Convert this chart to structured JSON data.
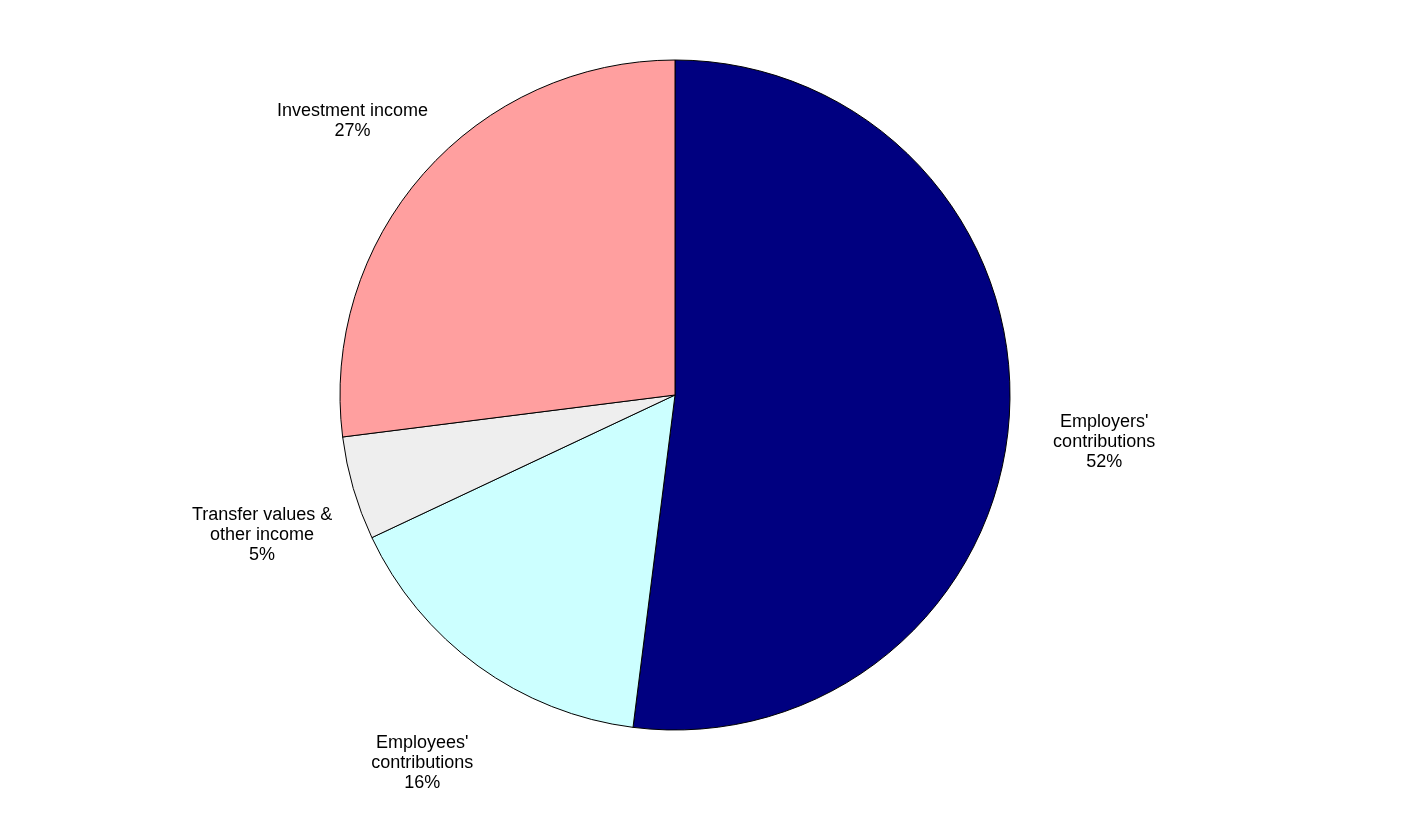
{
  "chart_data": {
    "type": "pie",
    "categories": [
      "Employers' contributions",
      "Employees' contributions",
      "Transfer values & other income",
      "Investment income"
    ],
    "values": [
      52,
      16,
      5,
      27
    ],
    "value_labels": [
      "52%",
      "16%",
      "5%",
      "27%"
    ],
    "colors": [
      "#000080",
      "#ccffff",
      "#eeeeee",
      "#ff9f9f"
    ],
    "legend": false
  }
}
